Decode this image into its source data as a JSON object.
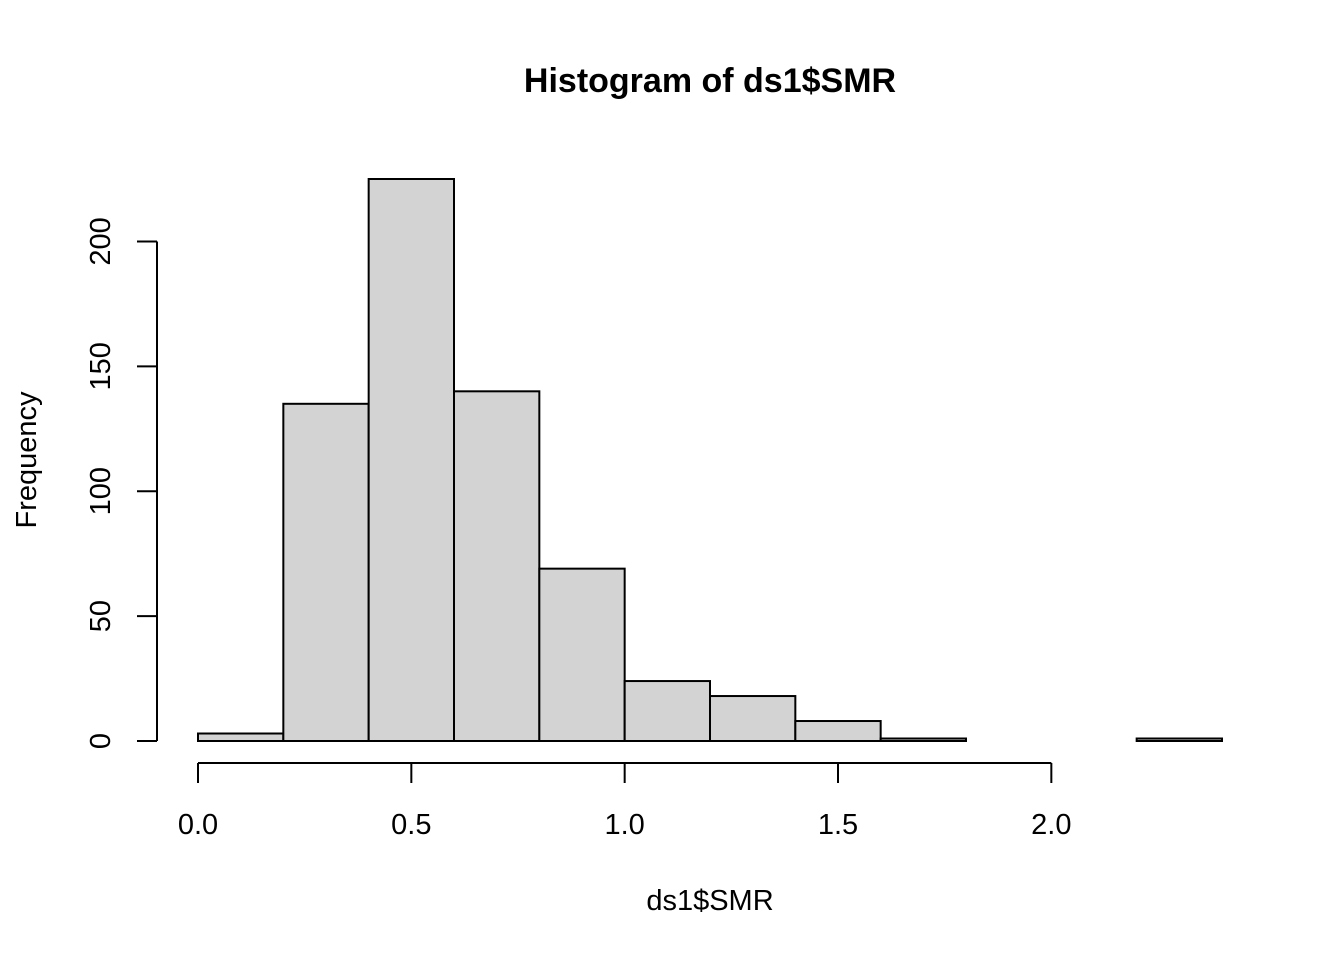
{
  "chart_data": {
    "type": "bar",
    "title": "Histogram of ds1$SMR",
    "xlabel": "ds1$SMR",
    "ylabel": "Frequency",
    "bins": [
      {
        "from": 0.0,
        "to": 0.2,
        "count": 3
      },
      {
        "from": 0.2,
        "to": 0.4,
        "count": 135
      },
      {
        "from": 0.4,
        "to": 0.6,
        "count": 225
      },
      {
        "from": 0.6,
        "to": 0.8,
        "count": 140
      },
      {
        "from": 0.8,
        "to": 1.0,
        "count": 69
      },
      {
        "from": 1.0,
        "to": 1.2,
        "count": 24
      },
      {
        "from": 1.2,
        "to": 1.4,
        "count": 18
      },
      {
        "from": 1.4,
        "to": 1.6,
        "count": 8
      },
      {
        "from": 1.6,
        "to": 1.8,
        "count": 1
      },
      {
        "from": 1.8,
        "to": 2.0,
        "count": 0
      },
      {
        "from": 2.0,
        "to": 2.2,
        "count": 0
      },
      {
        "from": 2.2,
        "to": 2.4,
        "count": 1
      }
    ],
    "xlim": [
      0.0,
      2.4
    ],
    "ylim": [
      0,
      225
    ],
    "x_ticks": [
      0.0,
      0.5,
      1.0,
      1.5,
      2.0
    ],
    "x_tick_labels": [
      "0.0",
      "0.5",
      "1.0",
      "1.5",
      "2.0"
    ],
    "y_ticks": [
      0,
      50,
      100,
      150,
      200
    ],
    "y_tick_labels": [
      "0",
      "50",
      "100",
      "150",
      "200"
    ],
    "grid": false,
    "bar_color": "#d3d3d3",
    "border_color": "#000000"
  }
}
